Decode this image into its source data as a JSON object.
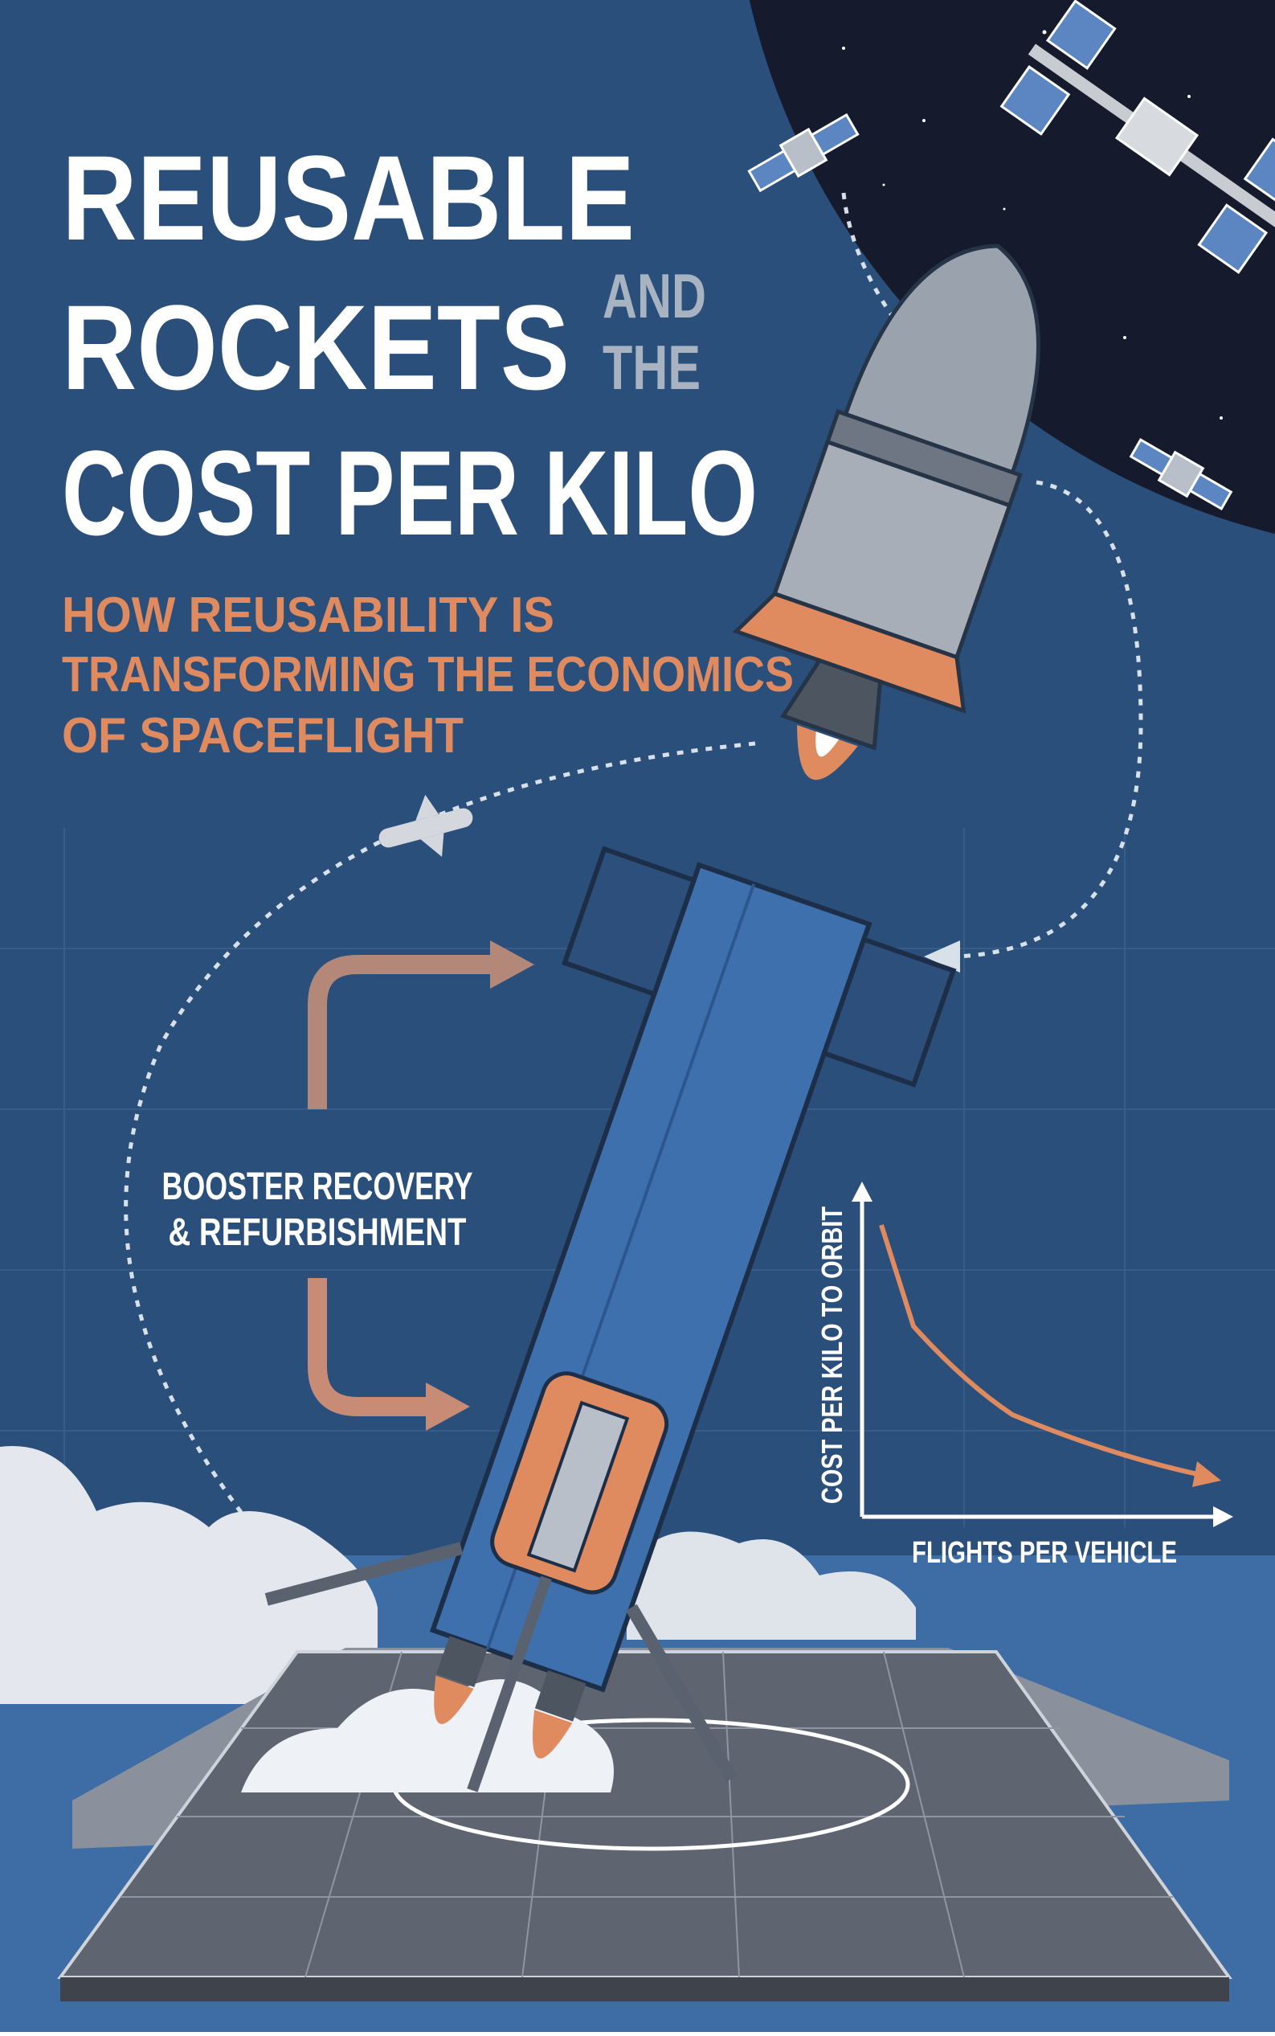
{
  "title": {
    "lines": [
      "REUSABLE",
      "ROCKETS",
      "COST PER KILO"
    ],
    "aside": [
      "AND",
      "THE"
    ]
  },
  "subtitle": [
    "HOW REUSABILITY IS",
    "TRANSFORMING THE ECONOMICS",
    "OF SPACEFLIGHT"
  ],
  "cycle_label": [
    "BOOSTER RECOVERY",
    "& REFURBISHMENT"
  ],
  "inset_chart": {
    "y_label": "COST PER KILO TO ORBIT",
    "x_label": "FLIGHTS PER VEHICLE"
  }
}
